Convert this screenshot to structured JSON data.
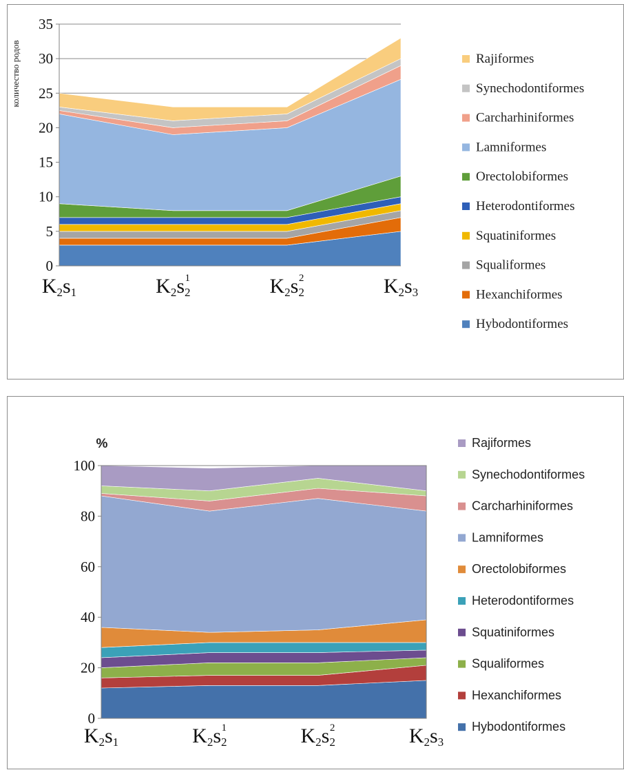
{
  "chart_data": [
    {
      "type": "area",
      "stacked": true,
      "ylabel": "количество родов",
      "ylim": [
        0,
        35
      ],
      "yticks": [
        "0",
        "5",
        "10",
        "15",
        "20",
        "25",
        "30",
        "35"
      ],
      "categories": [
        {
          "base": "K",
          "sub1": "2",
          "mid": "s",
          "sub2": "1",
          "sup": ""
        },
        {
          "base": "K",
          "sub1": "2",
          "mid": "s",
          "sub2": "2",
          "sup": "1"
        },
        {
          "base": "K",
          "sub1": "2",
          "mid": "s",
          "sub2": "2",
          "sup": "2"
        },
        {
          "base": "K",
          "sub1": "2",
          "mid": "s",
          "sub2": "3",
          "sup": ""
        }
      ],
      "grid": "horizontal",
      "legend": "right",
      "series": [
        {
          "name": "Hybodontiformes",
          "color": "#4f81bd",
          "values": [
            3,
            3,
            3,
            5
          ]
        },
        {
          "name": "Hexanchiformes",
          "color": "#e36c09",
          "values": [
            1,
            1,
            1,
            2
          ]
        },
        {
          "name": "Squaliformes",
          "color": "#a5a5a5",
          "values": [
            1,
            1,
            1,
            1
          ]
        },
        {
          "name": "Squatiniformes",
          "color": "#f0b800",
          "values": [
            1,
            1,
            1,
            1
          ]
        },
        {
          "name": "Heterodontiformes",
          "color": "#2e5fb8",
          "values": [
            1,
            1,
            1,
            1
          ]
        },
        {
          "name": "Orectolobiformes",
          "color": "#5f9e3a",
          "values": [
            2,
            1,
            1,
            3
          ]
        },
        {
          "name": "Lamniformes",
          "color": "#95b6e0",
          "values": [
            13,
            11,
            12,
            14
          ]
        },
        {
          "name": "Carcharhiniformes",
          "color": "#f0a08a",
          "values": [
            0.5,
            1,
            1,
            2
          ]
        },
        {
          "name": "Synechodontiformes",
          "color": "#c4c4c4",
          "values": [
            0.5,
            1,
            1,
            1
          ]
        },
        {
          "name": "Rajiformes",
          "color": "#f9cd7e",
          "values": [
            2,
            2,
            1,
            3
          ]
        }
      ]
    },
    {
      "type": "area",
      "stacked": true,
      "ylabel": "%",
      "ylim": [
        0,
        100
      ],
      "yticks": [
        "0",
        "20",
        "40",
        "60",
        "80",
        "100"
      ],
      "categories": [
        {
          "base": "K",
          "sub1": "2",
          "mid": "s",
          "sub2": "1",
          "sup": ""
        },
        {
          "base": "K",
          "sub1": "2",
          "mid": "s",
          "sub2": "2",
          "sup": "1"
        },
        {
          "base": "K",
          "sub1": "2",
          "mid": "s",
          "sub2": "2",
          "sup": "2"
        },
        {
          "base": "K",
          "sub1": "2",
          "mid": "s",
          "sub2": "3",
          "sup": ""
        }
      ],
      "grid": "none",
      "legend": "right",
      "series": [
        {
          "name": "Hybodontiformes",
          "color": "#4471aa",
          "values": [
            12,
            13,
            13,
            15
          ]
        },
        {
          "name": "Hexanchiformes",
          "color": "#b33f3c",
          "values": [
            4,
            4,
            4,
            6
          ]
        },
        {
          "name": "Squaliformes",
          "color": "#8db04a",
          "values": [
            4,
            5,
            5,
            3
          ]
        },
        {
          "name": "Squatiniformes",
          "color": "#6c4d8f",
          "values": [
            4,
            4,
            4,
            3
          ]
        },
        {
          "name": "Heterodontiformes",
          "color": "#3ba1b8",
          "values": [
            4,
            4,
            4,
            3
          ]
        },
        {
          "name": "Orectolobiformes",
          "color": "#e08b3a",
          "values": [
            8,
            4,
            5,
            9
          ]
        },
        {
          "name": "Lamniformes",
          "color": "#93a8d1",
          "values": [
            52,
            48,
            52,
            43
          ]
        },
        {
          "name": "Carcharhiniformes",
          "color": "#d9908f",
          "values": [
            1,
            4,
            4,
            6
          ]
        },
        {
          "name": "Synechodontiformes",
          "color": "#b7d591",
          "values": [
            3,
            4,
            4,
            2
          ]
        },
        {
          "name": "Rajiformes",
          "color": "#a99bc3",
          "values": [
            8,
            9,
            5,
            10
          ]
        }
      ]
    }
  ]
}
